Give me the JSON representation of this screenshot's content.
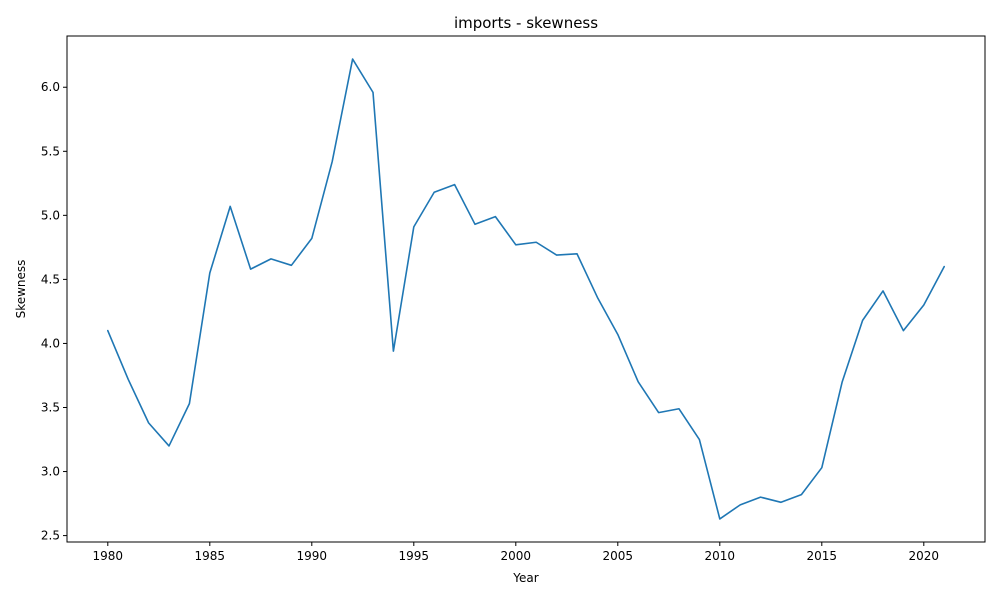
{
  "chart_data": {
    "type": "line",
    "title": "imports - skewness",
    "xlabel": "Year",
    "ylabel": "Skewness",
    "xlim": [
      1978,
      2023
    ],
    "ylim": [
      2.45,
      6.4
    ],
    "xticks": [
      1980,
      1985,
      1990,
      1995,
      2000,
      2005,
      2010,
      2015,
      2020
    ],
    "yticks": [
      2.5,
      3.0,
      3.5,
      4.0,
      4.5,
      5.0,
      5.5,
      6.0
    ],
    "ytick_labels": [
      "2.5",
      "3.0",
      "3.5",
      "4.0",
      "4.5",
      "5.0",
      "5.5",
      "6.0"
    ],
    "grid": false,
    "series": [
      {
        "color": "#1f77b4",
        "x": [
          1980,
          1981,
          1982,
          1983,
          1984,
          1985,
          1986,
          1987,
          1988,
          1989,
          1990,
          1991,
          1992,
          1993,
          1994,
          1995,
          1996,
          1997,
          1998,
          1999,
          2000,
          2001,
          2002,
          2003,
          2004,
          2005,
          2006,
          2007,
          2008,
          2009,
          2010,
          2011,
          2012,
          2013,
          2014,
          2015,
          2016,
          2017,
          2018,
          2019,
          2020,
          2021
        ],
        "values": [
          4.1,
          3.72,
          3.38,
          3.2,
          3.53,
          4.55,
          5.07,
          4.58,
          4.66,
          4.61,
          4.82,
          5.42,
          6.22,
          5.96,
          3.94,
          4.91,
          5.18,
          5.24,
          4.93,
          4.99,
          4.77,
          4.79,
          4.69,
          4.7,
          4.36,
          4.07,
          3.7,
          3.46,
          3.49,
          3.25,
          2.63,
          2.74,
          2.8,
          2.76,
          2.82,
          3.03,
          3.7,
          4.18,
          4.41,
          4.1,
          4.3,
          4.6
        ]
      }
    ]
  }
}
